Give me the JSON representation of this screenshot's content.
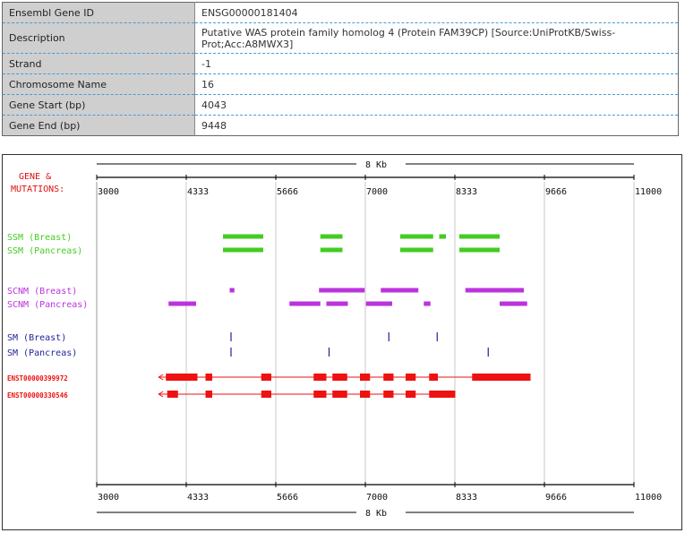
{
  "gene_info": {
    "rows": [
      {
        "label": "Ensembl Gene ID",
        "value": "ENSG00000181404"
      },
      {
        "label": "Description",
        "value": "Putative WAS protein family homolog 4 (Protein FAM39CP) [Source:UniProtKB/Swiss-Prot;Acc:A8MWX3]"
      },
      {
        "label": "Strand",
        "value": "-1"
      },
      {
        "label": "Chromosome Name",
        "value": "16"
      },
      {
        "label": "Gene Start (bp)",
        "value": "4043"
      },
      {
        "label": "Gene End (bp)",
        "value": "9448"
      }
    ]
  },
  "graphic": {
    "header_line1": "GENE &",
    "header_line2": "MUTATIONS:",
    "scale_label": "8  Kb",
    "ticks": [
      "3000",
      "4333",
      "5666",
      "7000",
      "8333",
      "9666",
      "11000"
    ],
    "colors": {
      "ssm": "#44cc22",
      "scnm": "#bb33dd",
      "sm": "#222299",
      "transcript": "#ee1111",
      "header": "#dd1111"
    }
  },
  "chart_data": {
    "type": "track",
    "x_unit": "bp",
    "xlim": [
      3000,
      11000
    ],
    "tracks": [
      {
        "label": "SSM (Breast)",
        "kind": "ssm",
        "segments": [
          [
            4880,
            5480
          ],
          [
            6330,
            6660
          ],
          [
            7520,
            8010
          ],
          [
            8100,
            8200
          ],
          [
            8400,
            9000
          ]
        ]
      },
      {
        "label": "SSM (Pancreas)",
        "kind": "ssm",
        "segments": [
          [
            4880,
            5480
          ],
          [
            6330,
            6660
          ],
          [
            7520,
            8010
          ],
          [
            8400,
            9000
          ]
        ]
      },
      {
        "label": "SCNM (Breast)",
        "kind": "scnm",
        "segments": [
          [
            4980,
            5050
          ],
          [
            6310,
            6990
          ],
          [
            7230,
            7790
          ],
          [
            8490,
            9360
          ]
        ]
      },
      {
        "label": "SCNM (Pancreas)",
        "kind": "scnm",
        "segments": [
          [
            4070,
            4480
          ],
          [
            5870,
            6330
          ],
          [
            6420,
            6740
          ],
          [
            7010,
            7400
          ],
          [
            7870,
            7970
          ],
          [
            9000,
            9410
          ]
        ]
      },
      {
        "label": "SM (Breast)",
        "kind": "sm",
        "points": [
          5000,
          7350,
          8070
        ]
      },
      {
        "label": "SM (Pancreas)",
        "kind": "sm",
        "points": [
          5000,
          6460,
          8830
        ]
      },
      {
        "label": "ENST00000399972",
        "kind": "transcript",
        "line": [
          3950,
          9460
        ],
        "arrow": "left",
        "exons": [
          [
            4030,
            4500
          ],
          [
            4620,
            4720
          ],
          [
            5450,
            5600
          ],
          [
            6230,
            6420
          ],
          [
            6510,
            6730
          ],
          [
            6920,
            7070
          ],
          [
            7270,
            7420
          ],
          [
            7600,
            7750
          ],
          [
            7950,
            8080
          ],
          [
            8590,
            9460
          ]
        ]
      },
      {
        "label": "ENST00000330546",
        "kind": "transcript",
        "line": [
          3950,
          8340
        ],
        "arrow": "left",
        "exons": [
          [
            4050,
            4210
          ],
          [
            4620,
            4720
          ],
          [
            5450,
            5600
          ],
          [
            6230,
            6420
          ],
          [
            6510,
            6730
          ],
          [
            6920,
            7070
          ],
          [
            7270,
            7420
          ],
          [
            7600,
            7750
          ],
          [
            7950,
            8340
          ]
        ]
      }
    ]
  }
}
